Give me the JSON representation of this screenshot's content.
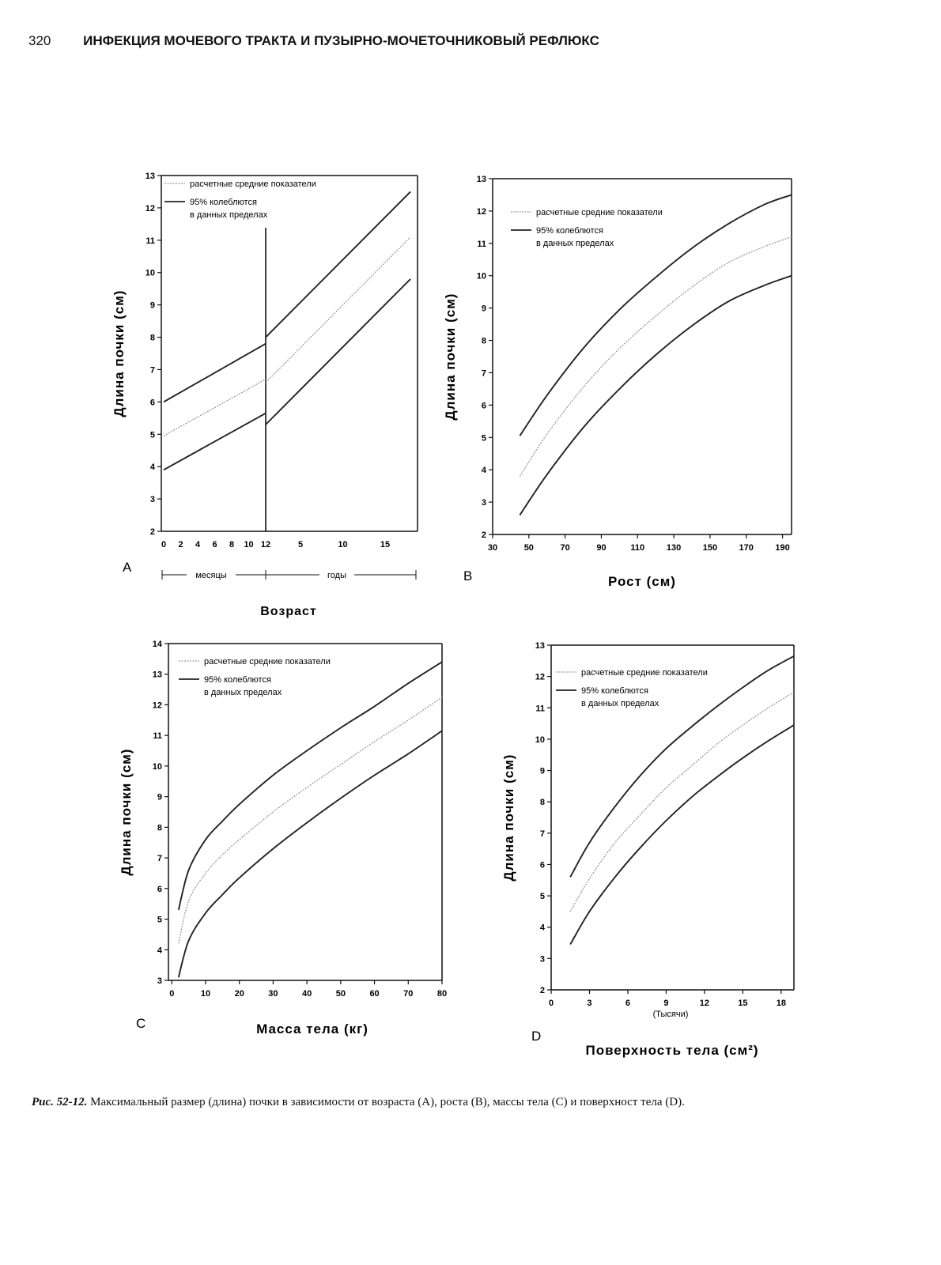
{
  "header": {
    "page_number": "320",
    "title": "ИНФЕКЦИЯ МОЧЕВОГО ТРАКТА И ПУЗЫРНО-МОЧЕТОЧНИКОВЫЙ РЕФЛЮКС"
  },
  "caption": {
    "lead": "Рис. 52-12.",
    "text": " Максимальный размер (длина) почки в зависимости от возраста (A), роста (B), массы тела (C) и поверхност тела (D)."
  },
  "legend": {
    "mean": "расчетные средние показатели",
    "band_line1": "95% колеблются",
    "band_line2": "в данных пределах"
  },
  "colors": {
    "mean": "#9a9a9a",
    "band": "#222222"
  },
  "chart_data": [
    {
      "panel": "A",
      "type": "line",
      "xlabel": "Возраст",
      "ylabel": "Длина почки (см)",
      "ylim": [
        2,
        13
      ],
      "yticks": [
        2,
        3,
        4,
        5,
        6,
        7,
        8,
        9,
        10,
        11,
        12,
        13
      ],
      "xticks_months": [
        "0",
        "2",
        "4",
        "6",
        "8",
        "10",
        "12"
      ],
      "xticks_years": [
        "5",
        "10",
        "15"
      ],
      "months_label": "месяцы",
      "years_label": "годы",
      "series": [
        {
          "role": "upper",
          "segments": [
            {
              "x": [
                0,
                12
              ],
              "y": [
                6.0,
                7.8
              ]
            },
            {
              "x": [
                1,
                18
              ],
              "y": [
                8.0,
                12.5
              ]
            }
          ]
        },
        {
          "role": "mean",
          "segments": [
            {
              "x": [
                0,
                12
              ],
              "y": [
                4.95,
                6.7
              ]
            },
            {
              "x": [
                1,
                18
              ],
              "y": [
                6.6,
                11.1
              ]
            }
          ]
        },
        {
          "role": "lower",
          "segments": [
            {
              "x": [
                0,
                12
              ],
              "y": [
                3.9,
                5.65
              ]
            },
            {
              "x": [
                1,
                18
              ],
              "y": [
                5.3,
                9.8
              ]
            }
          ]
        }
      ]
    },
    {
      "panel": "B",
      "type": "line",
      "xlabel": "Рост (см)",
      "ylabel": "Длина почки (см)",
      "xlim": [
        30,
        195
      ],
      "ylim": [
        2,
        13
      ],
      "xticks": [
        30,
        50,
        70,
        90,
        110,
        130,
        150,
        170,
        190
      ],
      "yticks": [
        2,
        3,
        4,
        5,
        6,
        7,
        8,
        9,
        10,
        11,
        12,
        13
      ],
      "x": [
        45,
        60,
        80,
        100,
        120,
        140,
        160,
        180,
        195
      ],
      "series": [
        {
          "role": "upper",
          "values": [
            5.05,
            6.3,
            7.75,
            8.95,
            9.95,
            10.85,
            11.6,
            12.2,
            12.5
          ]
        },
        {
          "role": "mean",
          "values": [
            3.8,
            5.1,
            6.55,
            7.75,
            8.75,
            9.65,
            10.4,
            10.9,
            11.2
          ]
        },
        {
          "role": "lower",
          "values": [
            2.6,
            3.85,
            5.3,
            6.5,
            7.55,
            8.45,
            9.2,
            9.7,
            10.0
          ]
        }
      ]
    },
    {
      "panel": "C",
      "type": "line",
      "xlabel": "Масса тела (кг)",
      "ylabel": "Длина почки (см)",
      "xlim": [
        -1,
        80
      ],
      "ylim": [
        3,
        14
      ],
      "xticks": [
        0,
        10,
        20,
        30,
        40,
        50,
        60,
        70,
        80
      ],
      "yticks": [
        3,
        4,
        5,
        6,
        7,
        8,
        9,
        10,
        11,
        12,
        13,
        14
      ],
      "x": [
        2,
        5,
        10,
        15,
        20,
        30,
        40,
        50,
        60,
        70,
        80
      ],
      "series": [
        {
          "role": "upper",
          "values": [
            5.3,
            6.6,
            7.6,
            8.2,
            8.75,
            9.7,
            10.5,
            11.25,
            11.95,
            12.7,
            13.4
          ]
        },
        {
          "role": "mean",
          "values": [
            4.2,
            5.6,
            6.5,
            7.1,
            7.6,
            8.5,
            9.3,
            10.05,
            10.8,
            11.5,
            12.25
          ]
        },
        {
          "role": "lower",
          "values": [
            3.1,
            4.3,
            5.2,
            5.8,
            6.35,
            7.3,
            8.15,
            8.95,
            9.7,
            10.4,
            11.15
          ]
        }
      ]
    },
    {
      "panel": "D",
      "type": "line",
      "xlabel": "Поверхность тела (см²)",
      "xunit_note": "(Тысячи)",
      "ylabel": "Длина почки (см)",
      "xlim": [
        0,
        19
      ],
      "ylim": [
        2,
        13
      ],
      "xticks": [
        0,
        3,
        6,
        9,
        12,
        15,
        18
      ],
      "yticks": [
        2,
        3,
        4,
        5,
        6,
        7,
        8,
        9,
        10,
        11,
        12,
        13
      ],
      "x": [
        1.5,
        3,
        5,
        7,
        9,
        11,
        13,
        15,
        17,
        19
      ],
      "series": [
        {
          "role": "upper",
          "values": [
            5.6,
            6.7,
            7.85,
            8.85,
            9.7,
            10.4,
            11.05,
            11.65,
            12.2,
            12.65
          ]
        },
        {
          "role": "mean",
          "values": [
            4.5,
            5.55,
            6.7,
            7.6,
            8.45,
            9.15,
            9.85,
            10.45,
            11.0,
            11.5
          ]
        },
        {
          "role": "lower",
          "values": [
            3.45,
            4.5,
            5.6,
            6.55,
            7.4,
            8.15,
            8.8,
            9.4,
            9.95,
            10.45
          ]
        }
      ]
    }
  ]
}
